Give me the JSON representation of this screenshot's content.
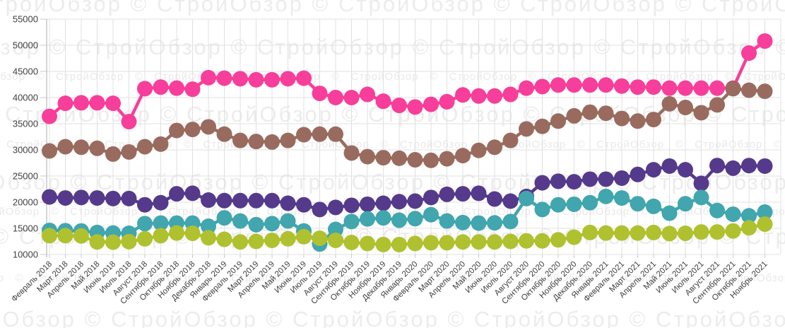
{
  "watermark": {
    "text": "СтройОбзор",
    "symbol": "©",
    "color_large": "#ececec",
    "color_small": "#e9e9e9"
  },
  "axis": {
    "label_color": "#404040",
    "grid_color": "#e0e0e0",
    "tick_color": "#c9c9c9",
    "axis_line_color": "#ababab"
  },
  "chart_data": {
    "type": "line",
    "title": "",
    "xlabel": "",
    "ylabel": "",
    "legend": "none",
    "grid": true,
    "ylim": [
      10000,
      55000
    ],
    "y_ticks": [
      55000,
      50000,
      45000,
      40000,
      35000,
      30000,
      25000,
      20000,
      15000,
      10000
    ],
    "categories": [
      "Февраль 2018",
      "Март 2018",
      "Апрель 2018",
      "Май 2018",
      "Июнь 2018",
      "Июль 2018",
      "Август 2018",
      "Сентябрь 2018",
      "Октябрь 2018",
      "Ноябрь 2018",
      "Декабрь 2018",
      "Январь 2019",
      "Февраль 2019",
      "Март 2019",
      "Апрель 2019",
      "Май 2019",
      "Июнь 2019",
      "Июль 2019",
      "Август 2019",
      "Сентябрь 2019",
      "Октябрь 2019",
      "Ноябрь 2019",
      "Декабрь 2019",
      "Январь 2020",
      "Февраль 2020",
      "Март 2020",
      "Апрель 2020",
      "Май 2020",
      "Июнь 2020",
      "Июль 2020",
      "Август 2020",
      "Сентябрь 2020",
      "Октябрь 2020",
      "Ноябрь 2020",
      "Декабрь 2020",
      "Январь 2021",
      "Февраль 2021",
      "Март 2021",
      "Апрель 2021",
      "Май 2021",
      "Июнь 2021",
      "Июль 2021",
      "Август 2021",
      "Сентябрь 2021",
      "Октябрь 2021",
      "Ноябрь 2021"
    ],
    "series": [
      {
        "name": "pink",
        "color": "#f73e9a",
        "values": [
          36400,
          38900,
          39000,
          39000,
          38900,
          35400,
          41700,
          42000,
          41800,
          41600,
          43800,
          43700,
          43600,
          43400,
          43400,
          43600,
          43700,
          40800,
          40000,
          40000,
          40600,
          39300,
          38500,
          38200,
          38700,
          39200,
          40500,
          40300,
          40300,
          40600,
          41800,
          42100,
          42400,
          42400,
          42400,
          42400,
          42200,
          42000,
          42000,
          41800,
          41800,
          41800,
          41800,
          41800,
          48500,
          50800
        ]
      },
      {
        "name": "brown",
        "color": "#996b5f",
        "values": [
          29800,
          30600,
          30500,
          30300,
          29200,
          29600,
          30600,
          31100,
          33700,
          33900,
          34400,
          33000,
          31800,
          31600,
          31500,
          31800,
          32900,
          33000,
          33000,
          29400,
          28700,
          28500,
          28400,
          28100,
          28000,
          28300,
          28900,
          29900,
          30500,
          31800,
          34000,
          34500,
          35500,
          36500,
          37200,
          37000,
          36000,
          35500,
          35800,
          38800,
          38100,
          37100,
          38600,
          41700,
          41400,
          41200
        ]
      },
      {
        "name": "purple",
        "color": "#553a8c",
        "values": [
          21000,
          20800,
          20900,
          20800,
          20700,
          20700,
          19500,
          19900,
          21600,
          21700,
          20400,
          20300,
          20300,
          20300,
          20300,
          19800,
          19500,
          18600,
          19000,
          19400,
          19600,
          19800,
          20100,
          20200,
          20900,
          21500,
          21600,
          21700,
          20600,
          20200,
          21100,
          23700,
          24000,
          23900,
          24400,
          24400,
          24600,
          25300,
          26200,
          26900,
          26200,
          23600,
          27000,
          26500,
          27000,
          26900
        ]
      },
      {
        "name": "teal",
        "color": "#41a6ae",
        "values": [
          14600,
          14550,
          14500,
          14200,
          14100,
          14050,
          15900,
          16000,
          16000,
          16000,
          15400,
          17000,
          16400,
          15700,
          15900,
          16400,
          14500,
          12000,
          14800,
          16300,
          16800,
          17000,
          16550,
          16850,
          17600,
          16400,
          16100,
          16000,
          16050,
          16300,
          20700,
          18600,
          19500,
          19600,
          19900,
          21100,
          20800,
          19700,
          19200,
          17900,
          19700,
          20900,
          18400,
          17700,
          17400,
          18100
        ]
      },
      {
        "name": "green",
        "color": "#b0c12f",
        "values": [
          13600,
          13600,
          13550,
          12400,
          12350,
          12450,
          13000,
          13600,
          14100,
          14050,
          13200,
          12900,
          12400,
          12500,
          12700,
          13000,
          13400,
          13100,
          12700,
          12300,
          12100,
          11900,
          11900,
          12100,
          12250,
          12250,
          12400,
          12400,
          12400,
          12500,
          12600,
          12600,
          12800,
          13300,
          14200,
          14100,
          14100,
          14100,
          14200,
          14000,
          14050,
          14300,
          14300,
          14500,
          15100,
          15800
        ]
      }
    ]
  }
}
